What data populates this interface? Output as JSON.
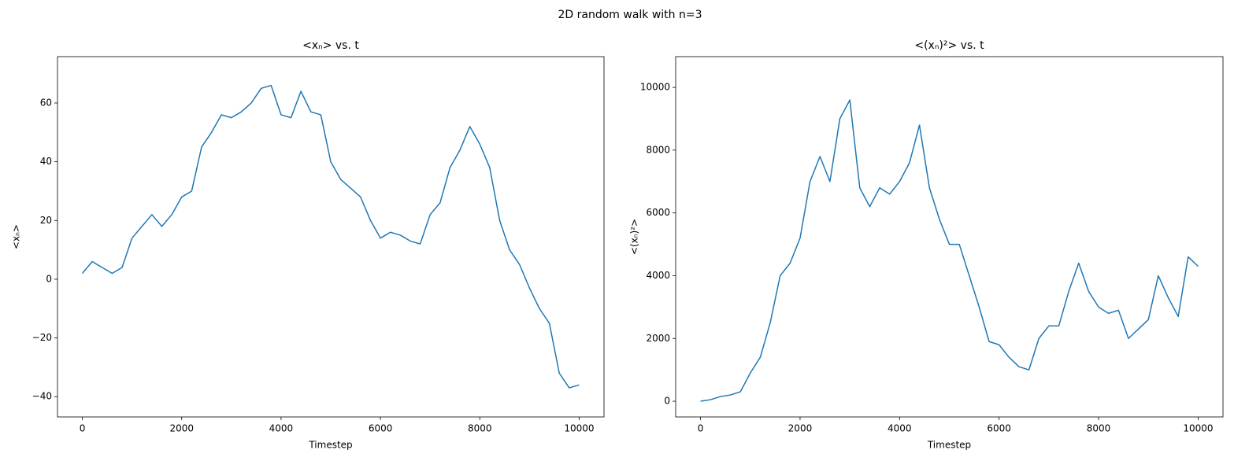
{
  "title": "2D random walk with n=3",
  "chart_data": [
    {
      "type": "line",
      "title": "<xₙ> vs. t",
      "x_label": "Timestep",
      "y_label": "<xₙ>",
      "x": [
        0,
        200,
        400,
        600,
        800,
        1000,
        1200,
        1400,
        1600,
        1800,
        2000,
        2200,
        2400,
        2600,
        2800,
        3000,
        3200,
        3400,
        3600,
        3800,
        4000,
        4200,
        4400,
        4600,
        4800,
        5000,
        5200,
        5400,
        5600,
        5800,
        6000,
        6200,
        6400,
        6600,
        6800,
        7000,
        7200,
        7400,
        7600,
        7800,
        8000,
        8200,
        8400,
        8600,
        8800,
        9000,
        9200,
        9400,
        9600,
        9800,
        10000
      ],
      "series": [
        {
          "color": "#1f77b4",
          "values": [
            2,
            6,
            4,
            2,
            4,
            14,
            18,
            22,
            18,
            22,
            28,
            30,
            45,
            50,
            56,
            55,
            57,
            60,
            65,
            66,
            56,
            55,
            64,
            57,
            56,
            40,
            34,
            31,
            28,
            20,
            14,
            16,
            15,
            13,
            12,
            22,
            26,
            38,
            44,
            52,
            46,
            38,
            20,
            10,
            5,
            -3,
            -10,
            -15,
            -32,
            -37,
            -36
          ]
        }
      ],
      "xlim": [
        -500,
        10500
      ],
      "ylim": [
        -46.9,
        75.8
      ],
      "xticks": [
        0,
        2000,
        4000,
        6000,
        8000,
        10000
      ],
      "yticks": [
        {
          "value": -40,
          "label": "−40"
        },
        {
          "value": -20,
          "label": "−20"
        },
        0,
        20,
        40,
        60
      ]
    },
    {
      "type": "line",
      "title": "<(xₙ)²> vs. t",
      "x_label": "Timestep",
      "y_label": "<(xₙ)²>",
      "x": [
        0,
        200,
        400,
        600,
        800,
        1000,
        1200,
        1400,
        1600,
        1800,
        2000,
        2200,
        2400,
        2600,
        2800,
        3000,
        3200,
        3400,
        3600,
        3800,
        4000,
        4200,
        4400,
        4600,
        4800,
        5000,
        5200,
        5400,
        5600,
        5800,
        6000,
        6200,
        6400,
        6600,
        6800,
        7000,
        7200,
        7400,
        7600,
        7800,
        8000,
        8200,
        8400,
        8600,
        8800,
        9000,
        9200,
        9400,
        9600,
        9800,
        10000
      ],
      "series": [
        {
          "color": "#1f77b4",
          "values": [
            0,
            50,
            150,
            200,
            300,
            900,
            1400,
            2500,
            4000,
            4400,
            5200,
            7000,
            7800,
            7000,
            9000,
            9600,
            6800,
            6200,
            6800,
            6600,
            7000,
            7600,
            8800,
            6800,
            5800,
            5000,
            5000,
            4000,
            3000,
            1900,
            1800,
            1400,
            1100,
            1000,
            2000,
            2400,
            2400,
            3500,
            4400,
            3500,
            3000,
            2800,
            2900,
            2000,
            2300,
            2600,
            4000,
            3300,
            2700,
            4600,
            4300
          ]
        }
      ],
      "xlim": [
        -500,
        10500
      ],
      "ylim": [
        -500,
        10980
      ],
      "xticks": [
        0,
        2000,
        4000,
        6000,
        8000,
        10000
      ],
      "yticks": [
        0,
        2000,
        4000,
        6000,
        8000,
        10000
      ]
    }
  ]
}
